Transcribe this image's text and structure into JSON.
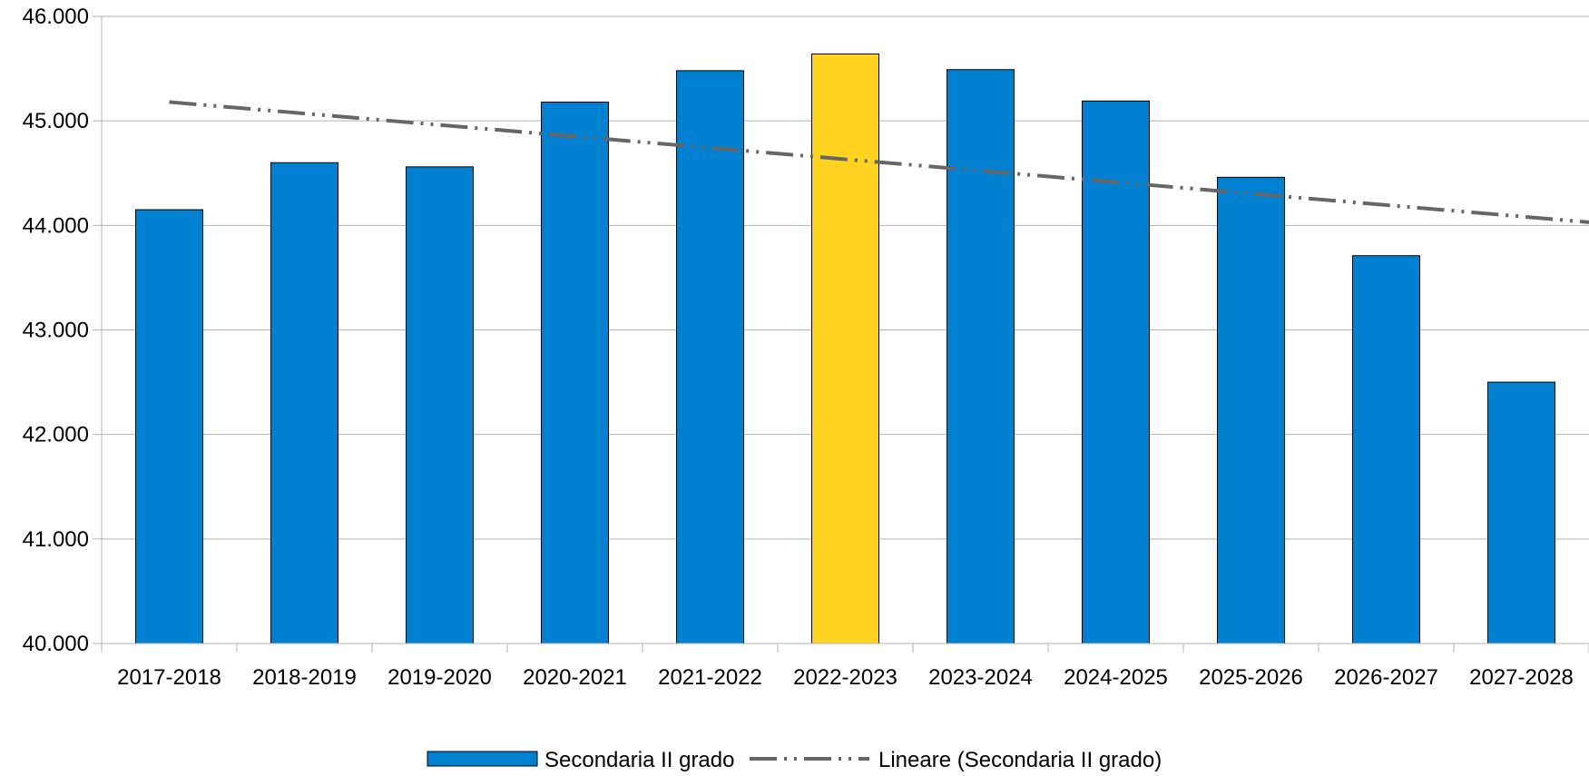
{
  "chart_data": {
    "type": "bar",
    "categories": [
      "2017-2018",
      "2018-2019",
      "2019-2020",
      "2020-2021",
      "2021-2022",
      "2022-2023",
      "2023-2024",
      "2024-2025",
      "2025-2026",
      "2026-2027",
      "2027-2028"
    ],
    "series": [
      {
        "name": "Secondaria II grado",
        "values": [
          44150,
          44600,
          44560,
          45180,
          45480,
          45640,
          45490,
          45190,
          44460,
          43710,
          42500
        ],
        "color": "#0080d0",
        "highlight": {
          "category": "2022-2023",
          "color": "#ffd320"
        }
      }
    ],
    "trendline": {
      "name": "Lineare (Secondaria II grado)",
      "type": "linear",
      "start_value": 45180,
      "end_value": 44030,
      "color": "#666666",
      "style": "dash-dot-dot"
    },
    "ylim": [
      40000,
      46000
    ],
    "yticks": [
      40000,
      41000,
      42000,
      43000,
      44000,
      45000,
      46000
    ],
    "ytick_labels": [
      "40.000",
      "41.000",
      "42.000",
      "43.000",
      "44.000",
      "45.000",
      "46.000"
    ],
    "grid": true,
    "legend_position": "bottom-center",
    "title": "",
    "xlabel": "",
    "ylabel": ""
  }
}
